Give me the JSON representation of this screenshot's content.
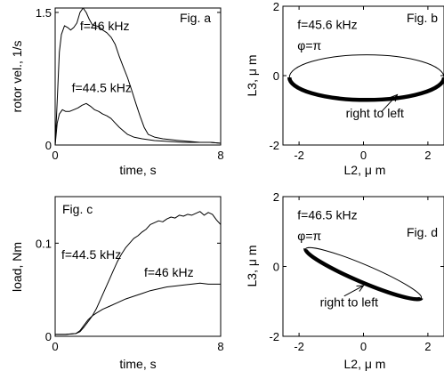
{
  "chart_data": [
    {
      "id": "fig-a",
      "type": "line",
      "panel_label": "Fig. a",
      "xlabel": "time, s",
      "ylabel": "rotor vel., 1/s",
      "xlim": [
        0,
        8
      ],
      "ylim": [
        0,
        1.55
      ],
      "xticks": [
        0,
        8
      ],
      "xtick_labels": [
        "0",
        "8"
      ],
      "yticks": [
        0,
        1.5
      ],
      "ytick_labels": [
        "0",
        "1.5"
      ],
      "grid": false,
      "series": [
        {
          "name": "f=46 kHz",
          "points": [
            [
              0,
              0.0
            ],
            [
              0.1,
              0.5
            ],
            [
              0.2,
              1.05
            ],
            [
              0.3,
              1.25
            ],
            [
              0.45,
              1.35
            ],
            [
              0.6,
              1.33
            ],
            [
              0.75,
              1.3
            ],
            [
              0.9,
              1.33
            ],
            [
              1.05,
              1.38
            ],
            [
              1.2,
              1.5
            ],
            [
              1.35,
              1.55
            ],
            [
              1.5,
              1.5
            ],
            [
              1.65,
              1.42
            ],
            [
              1.8,
              1.36
            ],
            [
              1.95,
              1.35
            ],
            [
              2.1,
              1.34
            ],
            [
              2.3,
              1.3
            ],
            [
              2.5,
              1.27
            ],
            [
              2.7,
              1.22
            ],
            [
              2.9,
              1.14
            ],
            [
              3.1,
              1.0
            ],
            [
              3.3,
              0.88
            ],
            [
              3.5,
              0.76
            ],
            [
              3.7,
              0.62
            ],
            [
              3.9,
              0.47
            ],
            [
              4.1,
              0.33
            ],
            [
              4.3,
              0.2
            ],
            [
              4.5,
              0.12
            ],
            [
              4.8,
              0.09
            ],
            [
              5.2,
              0.07
            ],
            [
              5.6,
              0.06
            ],
            [
              6.0,
              0.05
            ],
            [
              6.5,
              0.04
            ],
            [
              7.0,
              0.03
            ],
            [
              7.5,
              0.03
            ],
            [
              8.0,
              0.02
            ]
          ]
        },
        {
          "name": "f=44.5 kHz",
          "points": [
            [
              0,
              0.0
            ],
            [
              0.1,
              0.25
            ],
            [
              0.2,
              0.35
            ],
            [
              0.35,
              0.4
            ],
            [
              0.5,
              0.38
            ],
            [
              0.7,
              0.38
            ],
            [
              0.9,
              0.4
            ],
            [
              1.1,
              0.42
            ],
            [
              1.3,
              0.45
            ],
            [
              1.5,
              0.47
            ],
            [
              1.7,
              0.44
            ],
            [
              1.9,
              0.4
            ],
            [
              2.1,
              0.38
            ],
            [
              2.3,
              0.35
            ],
            [
              2.5,
              0.33
            ],
            [
              2.7,
              0.3
            ],
            [
              2.9,
              0.25
            ],
            [
              3.1,
              0.2
            ],
            [
              3.3,
              0.16
            ],
            [
              3.5,
              0.12
            ],
            [
              3.8,
              0.09
            ],
            [
              4.2,
              0.07
            ],
            [
              4.8,
              0.05
            ],
            [
              5.5,
              0.04
            ],
            [
              6.2,
              0.03
            ],
            [
              7.0,
              0.03
            ],
            [
              7.5,
              0.03
            ],
            [
              8.0,
              0.02
            ]
          ]
        }
      ],
      "annotations": [
        {
          "text": "f=46 kHz",
          "x": 1.2,
          "y": 1.3
        },
        {
          "text": "f=44.5 kHz",
          "x": 0.8,
          "y": 0.6
        }
      ]
    },
    {
      "id": "fig-b",
      "type": "line",
      "panel_label": "Fig. b",
      "xlabel": "L2, μ m",
      "ylabel": "L3, μ m",
      "xlim": [
        -2.5,
        2.5
      ],
      "ylim": [
        -2,
        2
      ],
      "xticks": [
        -2,
        0,
        2
      ],
      "xtick_labels": [
        "-2",
        "0",
        "2"
      ],
      "yticks": [
        -2,
        0,
        2
      ],
      "ytick_labels": [
        "-2",
        "0",
        "2"
      ],
      "grid": false,
      "ellipse": {
        "cx": 0.1,
        "cy": -0.05,
        "rx": 2.4,
        "ry": 0.65,
        "tilt_deg": 0
      },
      "annotations": [
        {
          "text": "f=45.6 kHz",
          "x": -2.05,
          "y": 1.35
        },
        {
          "text": "φ=π",
          "x": -2.05,
          "y": 0.75
        },
        {
          "text": "right to left",
          "x": -0.55,
          "y": -1.2
        }
      ],
      "arrow": {
        "from": [
          0.55,
          -1.05
        ],
        "to": [
          1.05,
          -0.55
        ]
      }
    },
    {
      "id": "fig-c",
      "type": "line",
      "panel_label": "Fig. c",
      "xlabel": "time, s",
      "ylabel": "load, Nm",
      "xlim": [
        0,
        8
      ],
      "ylim": [
        0,
        0.15
      ],
      "xticks": [
        0,
        8
      ],
      "xtick_labels": [
        "0",
        "8"
      ],
      "yticks": [
        0,
        0.1
      ],
      "ytick_labels": [
        "0",
        "0.1"
      ],
      "grid": false,
      "series": [
        {
          "name": "f=44.5 kHz",
          "points": [
            [
              0,
              0.002
            ],
            [
              0.5,
              0.002
            ],
            [
              1.0,
              0.003
            ],
            [
              1.2,
              0.005
            ],
            [
              1.4,
              0.01
            ],
            [
              1.6,
              0.016
            ],
            [
              1.8,
              0.022
            ],
            [
              2.0,
              0.03
            ],
            [
              2.2,
              0.04
            ],
            [
              2.4,
              0.05
            ],
            [
              2.6,
              0.06
            ],
            [
              2.8,
              0.07
            ],
            [
              3.0,
              0.08
            ],
            [
              3.2,
              0.088
            ],
            [
              3.4,
              0.095
            ],
            [
              3.6,
              0.1
            ],
            [
              3.8,
              0.105
            ],
            [
              4.0,
              0.108
            ],
            [
              4.2,
              0.112
            ],
            [
              4.4,
              0.115
            ],
            [
              4.6,
              0.12
            ],
            [
              4.8,
              0.122
            ],
            [
              5.0,
              0.124
            ],
            [
              5.2,
              0.123
            ],
            [
              5.4,
              0.126
            ],
            [
              5.6,
              0.128
            ],
            [
              5.8,
              0.127
            ],
            [
              6.0,
              0.13
            ],
            [
              6.2,
              0.129
            ],
            [
              6.4,
              0.131
            ],
            [
              6.6,
              0.13
            ],
            [
              6.8,
              0.132
            ],
            [
              7.0,
              0.134
            ],
            [
              7.2,
              0.13
            ],
            [
              7.4,
              0.133
            ],
            [
              7.6,
              0.131
            ],
            [
              7.8,
              0.125
            ],
            [
              8.0,
              0.12
            ]
          ]
        },
        {
          "name": "f=46 kHz",
          "points": [
            [
              0,
              0.002
            ],
            [
              0.5,
              0.002
            ],
            [
              1.0,
              0.003
            ],
            [
              1.2,
              0.006
            ],
            [
              1.4,
              0.012
            ],
            [
              1.6,
              0.018
            ],
            [
              1.8,
              0.022
            ],
            [
              2.0,
              0.025
            ],
            [
              2.3,
              0.029
            ],
            [
              2.6,
              0.032
            ],
            [
              3.0,
              0.036
            ],
            [
              3.4,
              0.04
            ],
            [
              3.8,
              0.043
            ],
            [
              4.2,
              0.046
            ],
            [
              4.6,
              0.049
            ],
            [
              5.0,
              0.051
            ],
            [
              5.4,
              0.053
            ],
            [
              5.8,
              0.054
            ],
            [
              6.2,
              0.055
            ],
            [
              6.6,
              0.056
            ],
            [
              7.0,
              0.057
            ],
            [
              7.4,
              0.056
            ],
            [
              7.8,
              0.056
            ],
            [
              8.0,
              0.056
            ]
          ]
        }
      ],
      "annotations": [
        {
          "text": "f=44.5 kHz",
          "x": 0.3,
          "y": 0.083
        },
        {
          "text": "f=46 kHz",
          "x": 4.3,
          "y": 0.064
        }
      ]
    },
    {
      "id": "fig-d",
      "type": "line",
      "panel_label": "Fig. d",
      "xlabel": "L2, μ m",
      "ylabel": "L3, μ m",
      "xlim": [
        -2.5,
        2.5
      ],
      "ylim": [
        -2,
        2
      ],
      "xticks": [
        -2,
        0,
        2
      ],
      "xtick_labels": [
        "-2",
        "0",
        "2"
      ],
      "yticks": [
        -2,
        0,
        2
      ],
      "ytick_labels": [
        "-2",
        "0",
        "2"
      ],
      "grid": false,
      "ellipse": {
        "cx": 0.0,
        "cy": -0.2,
        "rx": 1.95,
        "ry": 0.25,
        "tilt_deg": 23
      },
      "annotations": [
        {
          "text": "f=46.5 kHz",
          "x": -2.05,
          "y": 1.35
        },
        {
          "text": "φ=π",
          "x": -2.05,
          "y": 0.75
        },
        {
          "text": "right to left",
          "x": -1.35,
          "y": -1.15
        }
      ],
      "arrow": {
        "from": [
          -0.6,
          -0.85
        ],
        "to": [
          0.0,
          -0.55
        ]
      }
    }
  ]
}
